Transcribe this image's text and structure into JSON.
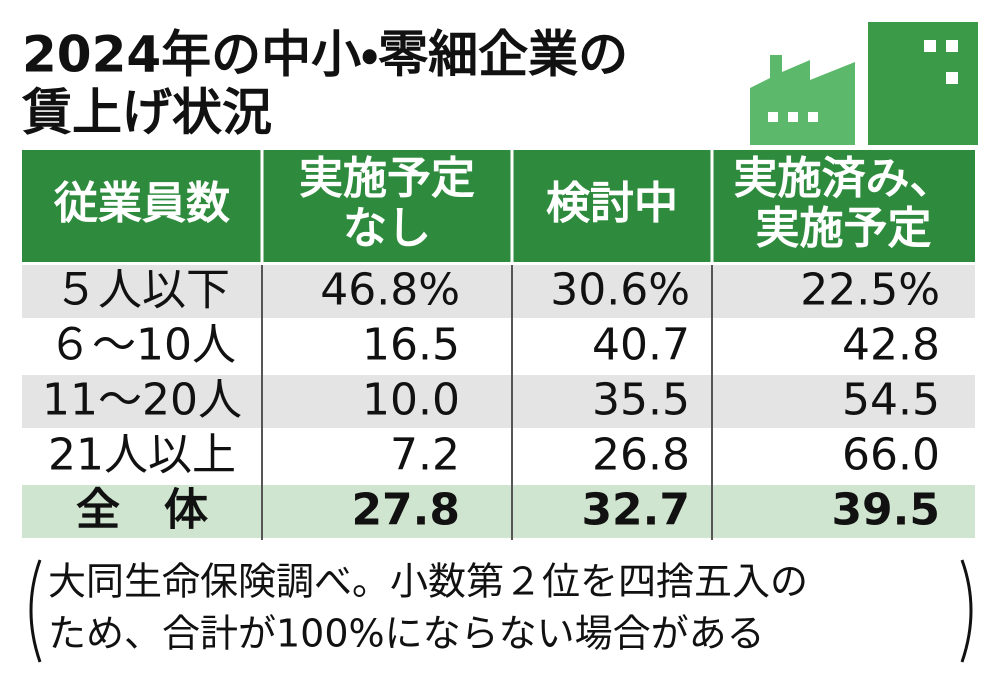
{
  "header": {
    "title": [
      "2024年の中小・零細企業の",
      "賃上げ状況"
    ]
  },
  "table": {
    "columns": [
      [
        "従業員数"
      ],
      [
        "実施予定",
        "なし"
      ],
      [
        "検討中"
      ],
      [
        "実施済み、",
        "実施予定"
      ]
    ],
    "rows": [
      [
        "５人以下",
        "46.8%",
        "30.6%",
        "22.5%"
      ],
      [
        "６～10人",
        "16.5",
        "40.7",
        "42.8"
      ],
      [
        "11～20人",
        "10.0",
        "35.5",
        "54.5"
      ],
      [
        "21人以上",
        "7.2",
        "26.8",
        "66.0"
      ],
      [
        "全　体",
        "27.8",
        "32.7",
        "39.5"
      ]
    ]
  },
  "note": [
    "大同生命保険調べ。小数第２位を四捨五入の",
    "ため、合計が100%にならない場合がある"
  ]
}
